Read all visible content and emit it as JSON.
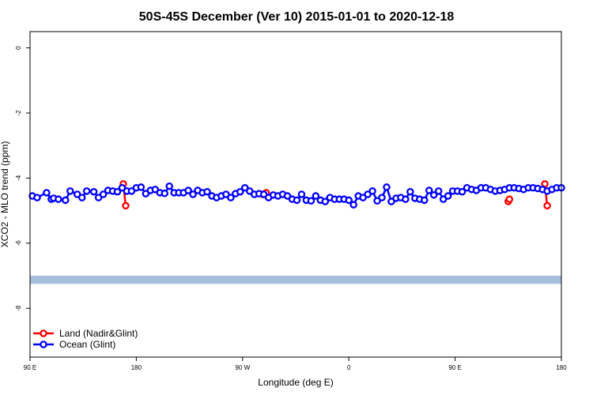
{
  "chart_data": {
    "type": "line",
    "title": "50S-45S December (Ver 10)   2015-01-01 to 2020-12-18",
    "xlabel": "Longitude (deg E)",
    "ylabel": "XCO2 - MLO trend (ppm)",
    "xlim": [
      90,
      540
    ],
    "ylim": [
      -9.5,
      0.5
    ],
    "x_ticks": [
      {
        "value": 90,
        "label": "90 E"
      },
      {
        "value": 180,
        "label": "180"
      },
      {
        "value": 270,
        "label": "90 W"
      },
      {
        "value": 360,
        "label": "0"
      },
      {
        "value": 450,
        "label": "90 E"
      },
      {
        "value": 540,
        "label": "180"
      }
    ],
    "y_ticks": [
      {
        "value": 0,
        "label": "0"
      },
      {
        "value": -2,
        "label": "-2"
      },
      {
        "value": -4,
        "label": "-4"
      },
      {
        "value": -6,
        "label": "-6"
      },
      {
        "value": -8,
        "label": "-8"
      }
    ],
    "legend_position": "bottom-left",
    "band": {
      "y_top": -7.0,
      "y_bottom": -7.25,
      "color": "#a8bfdc"
    },
    "series": [
      {
        "name": "Land (Nadir&Glint)",
        "color": "#ff0000",
        "segments": [
          [
            [
              169,
              -4.18
            ],
            [
              171,
              -4.85
            ]
          ],
          [
            [
              287,
              -4.5
            ],
            [
              290,
              -4.45
            ]
          ],
          [
            [
              495,
              -4.72
            ],
            [
              496,
              -4.65
            ]
          ],
          [
            [
              526,
              -4.18
            ],
            [
              528,
              -4.85
            ]
          ]
        ]
      },
      {
        "name": "Ocean (Glint)",
        "color": "#0000ff",
        "x": [
          92,
          96,
          104,
          108,
          110,
          114,
          120,
          124,
          130,
          134,
          138,
          144,
          148,
          152,
          156,
          160,
          164,
          168,
          172,
          176,
          180,
          184,
          188,
          192,
          196,
          200,
          204,
          208,
          212,
          216,
          220,
          224,
          228,
          232,
          236,
          240,
          244,
          248,
          252,
          256,
          260,
          264,
          268,
          272,
          276,
          280,
          284,
          288,
          292,
          296,
          300,
          304,
          308,
          312,
          316,
          320,
          324,
          328,
          332,
          336,
          340,
          344,
          348,
          352,
          356,
          360,
          364,
          368,
          372,
          376,
          380,
          384,
          388,
          392,
          396,
          400,
          404,
          408,
          412,
          416,
          420,
          424,
          428,
          432,
          436,
          440,
          444,
          448,
          452,
          456,
          460,
          464,
          468,
          472,
          476,
          480,
          484,
          488,
          492,
          496,
          500,
          504,
          508,
          512,
          516,
          520,
          524,
          528,
          532,
          536,
          540
        ],
        "y": [
          -4.55,
          -4.6,
          -4.45,
          -4.65,
          -4.62,
          -4.65,
          -4.68,
          -4.4,
          -4.5,
          -4.6,
          -4.4,
          -4.42,
          -4.6,
          -4.5,
          -4.38,
          -4.4,
          -4.42,
          -4.3,
          -4.4,
          -4.4,
          -4.3,
          -4.28,
          -4.48,
          -4.38,
          -4.35,
          -4.45,
          -4.47,
          -4.25,
          -4.45,
          -4.45,
          -4.45,
          -4.38,
          -4.5,
          -4.38,
          -4.45,
          -4.42,
          -4.55,
          -4.6,
          -4.55,
          -4.5,
          -4.6,
          -4.48,
          -4.42,
          -4.3,
          -4.4,
          -4.5,
          -4.48,
          -4.5,
          -4.6,
          -4.52,
          -4.55,
          -4.5,
          -4.55,
          -4.65,
          -4.68,
          -4.5,
          -4.68,
          -4.7,
          -4.55,
          -4.68,
          -4.72,
          -4.6,
          -4.65,
          -4.65,
          -4.65,
          -4.68,
          -4.82,
          -4.55,
          -4.6,
          -4.5,
          -4.4,
          -4.7,
          -4.6,
          -4.28,
          -4.72,
          -4.62,
          -4.6,
          -4.65,
          -4.42,
          -4.62,
          -4.65,
          -4.68,
          -4.38,
          -4.52,
          -4.4,
          -4.65,
          -4.55,
          -4.4,
          -4.4,
          -4.42,
          -4.3,
          -4.35,
          -4.38,
          -4.3,
          -4.3,
          -4.35,
          -4.4,
          -4.38,
          -4.35,
          -4.3,
          -4.3,
          -4.32,
          -4.35,
          -4.3,
          -4.3,
          -4.32,
          -4.35,
          -4.4,
          -4.35,
          -4.3,
          -4.3
        ]
      }
    ]
  }
}
